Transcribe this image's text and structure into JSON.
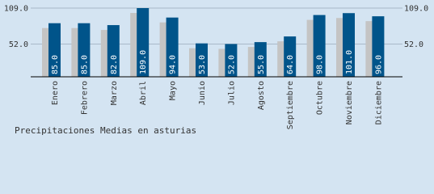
{
  "chart_data": {
    "type": "bar",
    "title": "Precipitaciones Medias en asturias",
    "categories": [
      "Enero",
      "Febrero",
      "Marzo",
      "Abril",
      "Mayo",
      "Junio",
      "Julio",
      "Agosto",
      "Septiembre",
      "Octubre",
      "Noviembre",
      "Diciembre"
    ],
    "values": [
      85,
      85,
      82,
      109,
      94,
      53,
      52,
      55,
      64,
      98,
      101,
      96
    ],
    "value_labels": [
      "85.0",
      "85.0",
      "82.0",
      "109.0",
      "94.0",
      "53.0",
      "52.0",
      "55.0",
      "64.0",
      "98.0",
      "101.0",
      "96.0"
    ],
    "color": "#00548a",
    "shadow_color": "#c4c4c4",
    "ylim": [
      0,
      109
    ],
    "yticks": [
      {
        "value": 52,
        "label": "52.0"
      },
      {
        "value": 109,
        "label": "109.0"
      }
    ],
    "grid": true
  }
}
